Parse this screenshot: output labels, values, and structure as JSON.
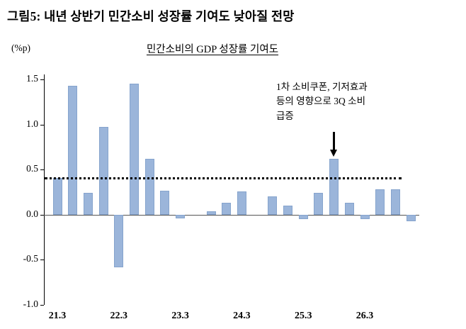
{
  "figure": {
    "title": "그림5: 내년 상반기 민간소비 성장률 기여도 낮아질 전망"
  },
  "chart_data": {
    "type": "bar",
    "title": "민간소비의 GDP 성장률 기여도",
    "unit_label": "(%p)",
    "categories": [
      "21.3",
      "21.6",
      "21.9",
      "21.12",
      "22.3",
      "22.6",
      "22.9",
      "22.12",
      "23.3",
      "23.6",
      "23.9",
      "23.12",
      "24.3",
      "24.6",
      "24.9",
      "24.12",
      "25.3",
      "25.6",
      "25.9",
      "25.12",
      "26.3",
      "26.6",
      "26.9",
      "26.12"
    ],
    "values": [
      0.41,
      1.43,
      0.24,
      0.97,
      -0.58,
      1.45,
      0.62,
      0.27,
      -0.04,
      0.0,
      0.04,
      0.13,
      0.26,
      0.0,
      0.2,
      0.1,
      -0.05,
      0.24,
      0.62,
      0.13,
      -0.05,
      0.28,
      0.28,
      -0.07
    ],
    "x_tick_labels": [
      "21.3",
      "22.3",
      "23.3",
      "24.3",
      "25.3",
      "26.3"
    ],
    "y_ticks": [
      "1.5",
      "1.0",
      "0.5",
      "0.0",
      "-0.5",
      "-1.0"
    ],
    "ylim": [
      -1.0,
      1.5
    ],
    "reference_line": 0.4,
    "bar_color": "#9BB5DA",
    "bar_border_color": "#86A4CD",
    "grid": "off",
    "legend": "none",
    "annotation": {
      "text_lines": [
        "1차 소비쿠폰, 기저효과",
        "등의 영향으로 3Q 소비",
        "급증"
      ],
      "arrow": "down",
      "target_category": "25.9"
    }
  }
}
